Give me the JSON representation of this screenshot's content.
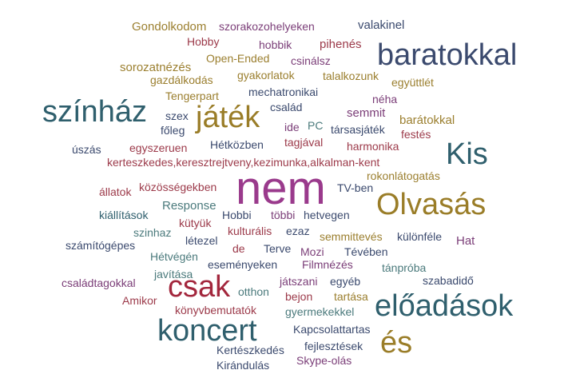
{
  "colors": {
    "olive": "#9b7f2f",
    "purple": "#7b3e78",
    "teal": "#4b7a7c",
    "navy": "#3b4a6e",
    "maroon": "#9c3a4a",
    "slate": "#2f5f6d",
    "magenta": "#9a3a8c",
    "red": "#a3273d",
    "gold": "#9a7d28"
  },
  "words": [
    {
      "text": "Gondolkodom",
      "color": "olive"
    },
    {
      "text": "szorakozohelyeken",
      "color": "purple"
    },
    {
      "text": "valakinel",
      "color": "navy"
    },
    {
      "text": "Hobby",
      "color": "maroon"
    },
    {
      "text": "hobbik",
      "color": "purple"
    },
    {
      "text": "pihenés",
      "color": "maroon"
    },
    {
      "text": "baratokkal",
      "color": "navy"
    },
    {
      "text": "Open-Ended",
      "color": "olive"
    },
    {
      "text": "csinálsz",
      "color": "purple"
    },
    {
      "text": "sorozatnézés",
      "color": "olive"
    },
    {
      "text": "gyakorlatok",
      "color": "olive"
    },
    {
      "text": "talalkozunk",
      "color": "olive"
    },
    {
      "text": "gazdálkodás",
      "color": "olive"
    },
    {
      "text": "együttlét",
      "color": "olive"
    },
    {
      "text": "mechatronikai",
      "color": "navy"
    },
    {
      "text": "Tengerpart",
      "color": "olive"
    },
    {
      "text": "színház",
      "color": "slate"
    },
    {
      "text": "játék",
      "color": "gold"
    },
    {
      "text": "néha",
      "color": "purple"
    },
    {
      "text": "család",
      "color": "navy"
    },
    {
      "text": "semmit",
      "color": "purple"
    },
    {
      "text": "szex",
      "color": "navy"
    },
    {
      "text": "barátokkal",
      "color": "olive"
    },
    {
      "text": "főleg",
      "color": "navy"
    },
    {
      "text": "ide",
      "color": "purple"
    },
    {
      "text": "PC",
      "color": "teal"
    },
    {
      "text": "társasjáték",
      "color": "navy"
    },
    {
      "text": "festés",
      "color": "maroon"
    },
    {
      "text": "Hétközben",
      "color": "navy"
    },
    {
      "text": "tagjával",
      "color": "maroon"
    },
    {
      "text": "harmonika",
      "color": "maroon"
    },
    {
      "text": "Kis",
      "color": "slate"
    },
    {
      "text": "úszás",
      "color": "navy"
    },
    {
      "text": "egyszeruen",
      "color": "maroon"
    },
    {
      "text": "kerteszkedes,keresztrejtveny,kezimunka,alkalman-kent",
      "color": "maroon"
    },
    {
      "text": "rokonlátogatás",
      "color": "olive"
    },
    {
      "text": "nem",
      "color": "magenta"
    },
    {
      "text": "állatok",
      "color": "maroon"
    },
    {
      "text": "közösségekben",
      "color": "maroon"
    },
    {
      "text": "TV-ben",
      "color": "navy"
    },
    {
      "text": "Olvasás",
      "color": "gold"
    },
    {
      "text": "Response",
      "color": "teal"
    },
    {
      "text": "kiállítások",
      "color": "slate"
    },
    {
      "text": "Hobbi",
      "color": "navy"
    },
    {
      "text": "többi",
      "color": "purple"
    },
    {
      "text": "hetvegen",
      "color": "navy"
    },
    {
      "text": "kütyük",
      "color": "maroon"
    },
    {
      "text": "szinhaz",
      "color": "teal"
    },
    {
      "text": "kulturális",
      "color": "maroon"
    },
    {
      "text": "ezaz",
      "color": "navy"
    },
    {
      "text": "létezel",
      "color": "navy"
    },
    {
      "text": "semmittevés",
      "color": "olive"
    },
    {
      "text": "különféle",
      "color": "navy"
    },
    {
      "text": "Hat",
      "color": "purple"
    },
    {
      "text": "számítógépes",
      "color": "navy"
    },
    {
      "text": "de",
      "color": "maroon"
    },
    {
      "text": "Terve",
      "color": "navy"
    },
    {
      "text": "Mozi",
      "color": "purple"
    },
    {
      "text": "Tévében",
      "color": "navy"
    },
    {
      "text": "Hétvégén",
      "color": "teal"
    },
    {
      "text": "Filmnézés",
      "color": "purple"
    },
    {
      "text": "eseményeken",
      "color": "navy"
    },
    {
      "text": "tánpróba",
      "color": "teal"
    },
    {
      "text": "javítása",
      "color": "teal"
    },
    {
      "text": "családtagokkal",
      "color": "purple"
    },
    {
      "text": "csak",
      "color": "red"
    },
    {
      "text": "játszani",
      "color": "purple"
    },
    {
      "text": "egyéb",
      "color": "navy"
    },
    {
      "text": "szabadidő",
      "color": "navy"
    },
    {
      "text": "otthon",
      "color": "teal"
    },
    {
      "text": "tartása",
      "color": "olive"
    },
    {
      "text": "előadások",
      "color": "slate"
    },
    {
      "text": "Amikor",
      "color": "maroon"
    },
    {
      "text": "bejon",
      "color": "maroon"
    },
    {
      "text": "könyvbemutatók",
      "color": "maroon"
    },
    {
      "text": "gyermekekkel",
      "color": "teal"
    },
    {
      "text": "koncert",
      "color": "slate"
    },
    {
      "text": "Kapcsolattartas",
      "color": "navy"
    },
    {
      "text": "és",
      "color": "gold"
    },
    {
      "text": "Kertészkedés",
      "color": "navy"
    },
    {
      "text": "fejlesztések",
      "color": "navy"
    },
    {
      "text": "Kirándulás",
      "color": "navy"
    },
    {
      "text": "Skype-olás",
      "color": "purple"
    }
  ]
}
